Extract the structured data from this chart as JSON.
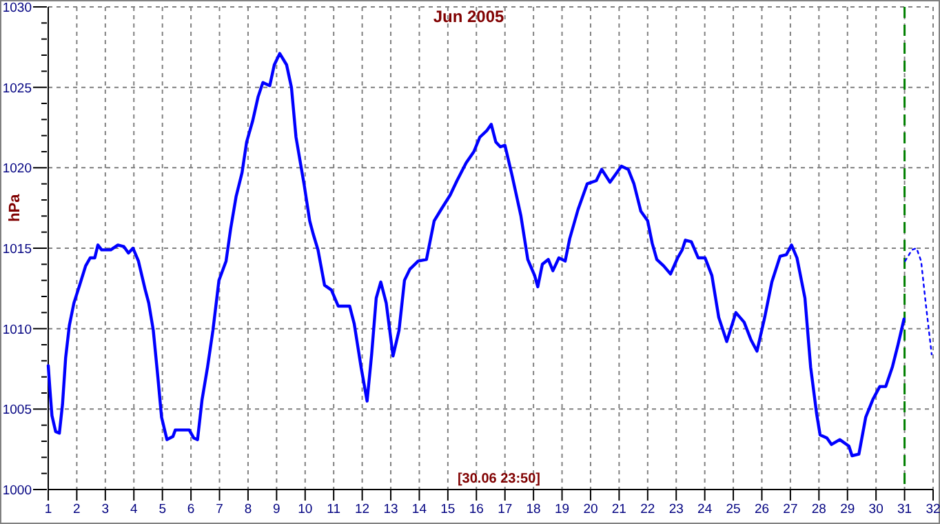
{
  "chart_data": {
    "type": "line",
    "title": "Jun 2005",
    "ylabel": "hPa",
    "annotations": [
      "[30.06 23:50]"
    ],
    "xlim": [
      1,
      32
    ],
    "ylim": [
      1000,
      1030
    ],
    "xticks": [
      1,
      2,
      3,
      4,
      5,
      6,
      7,
      8,
      9,
      10,
      11,
      12,
      13,
      14,
      15,
      16,
      17,
      18,
      19,
      20,
      21,
      22,
      23,
      24,
      25,
      26,
      27,
      28,
      29,
      30,
      31,
      32
    ],
    "yticks": [
      1000,
      {
        "value": 1001,
        "label": null
      },
      {
        "value": 1002,
        "label": null
      },
      {
        "value": 1003,
        "label": null
      },
      {
        "value": 1004,
        "label": null
      },
      1005,
      {
        "value": 1006,
        "label": null
      },
      {
        "value": 1007,
        "label": null
      },
      {
        "value": 1008,
        "label": null
      },
      {
        "value": 1009,
        "label": null
      },
      1010,
      {
        "value": 1011,
        "label": null
      },
      {
        "value": 1012,
        "label": null
      },
      {
        "value": 1013,
        "label": null
      },
      {
        "value": 1014,
        "label": null
      },
      1015,
      {
        "value": 1016,
        "label": null
      },
      {
        "value": 1017,
        "label": null
      },
      {
        "value": 1018,
        "label": null
      },
      {
        "value": 1019,
        "label": null
      },
      1020,
      {
        "value": 1021,
        "label": null
      },
      {
        "value": 1022,
        "label": null
      },
      {
        "value": 1023,
        "label": null
      },
      {
        "value": 1024,
        "label": null
      },
      1025,
      {
        "value": 1026,
        "label": null
      },
      {
        "value": 1027,
        "label": null
      },
      {
        "value": 1028,
        "label": null
      },
      {
        "value": 1029,
        "label": null
      },
      1030
    ],
    "grid": true,
    "marker": "none",
    "ref_lines": [
      {
        "axis": "x",
        "value": 31,
        "color": "#008000",
        "line_style": "dashed"
      }
    ],
    "series": [
      {
        "color": "#0000ff",
        "line_style": "solid",
        "x": [
          1.0,
          1.06,
          1.13,
          1.26,
          1.39,
          1.5,
          1.61,
          1.74,
          1.9,
          2.1,
          2.31,
          2.47,
          2.63,
          2.74,
          2.87,
          3.19,
          3.44,
          3.65,
          3.81,
          3.97,
          4.16,
          4.4,
          4.52,
          4.68,
          4.84,
          4.97,
          5.16,
          5.37,
          5.45,
          5.94,
          6.1,
          6.23,
          6.39,
          6.58,
          6.77,
          6.98,
          7.23,
          7.39,
          7.58,
          7.79,
          7.95,
          8.16,
          8.35,
          8.52,
          8.76,
          8.92,
          9.11,
          9.35,
          9.52,
          9.68,
          9.97,
          10.16,
          10.28,
          10.45,
          10.68,
          10.92,
          11.16,
          11.56,
          11.72,
          11.96,
          12.17,
          12.33,
          12.49,
          12.65,
          12.84,
          13.08,
          13.29,
          13.48,
          13.67,
          13.96,
          14.25,
          14.52,
          14.76,
          15.08,
          15.32,
          15.64,
          15.91,
          16.12,
          16.36,
          16.52,
          16.68,
          16.84,
          17.0,
          17.24,
          17.56,
          17.8,
          18.04,
          18.15,
          18.31,
          18.52,
          18.68,
          18.89,
          19.11,
          19.27,
          19.56,
          19.88,
          20.2,
          20.39,
          20.68,
          21.08,
          21.32,
          21.52,
          21.76,
          22.0,
          22.16,
          22.32,
          22.56,
          22.8,
          23.05,
          23.21,
          23.32,
          23.53,
          23.77,
          24.01,
          24.25,
          24.49,
          24.77,
          25.09,
          25.38,
          25.62,
          25.83,
          26.1,
          26.35,
          26.64,
          26.86,
          27.04,
          27.23,
          27.51,
          27.71,
          27.92,
          28.04,
          28.28,
          28.44,
          28.73,
          29.05,
          29.16,
          29.4,
          29.64,
          29.89,
          30.13,
          30.34,
          30.57,
          30.77,
          30.98
        ],
        "values": [
          1007.7,
          1006.2,
          1004.6,
          1003.6,
          1003.5,
          1005.3,
          1008.2,
          1010.2,
          1011.6,
          1012.7,
          1013.9,
          1014.4,
          1014.4,
          1015.2,
          1014.9,
          1014.9,
          1015.2,
          1015.1,
          1014.7,
          1015.0,
          1014.2,
          1012.4,
          1011.6,
          1009.9,
          1007.0,
          1004.5,
          1003.1,
          1003.3,
          1003.7,
          1003.7,
          1003.2,
          1003.1,
          1005.6,
          1007.6,
          1009.9,
          1013.0,
          1014.2,
          1016.2,
          1018.2,
          1019.7,
          1021.6,
          1022.9,
          1024.4,
          1025.3,
          1025.1,
          1026.4,
          1027.1,
          1026.4,
          1025.0,
          1021.9,
          1018.9,
          1016.7,
          1015.9,
          1014.9,
          1012.7,
          1012.4,
          1011.4,
          1011.4,
          1010.3,
          1007.6,
          1005.5,
          1008.4,
          1011.9,
          1012.9,
          1011.6,
          1008.3,
          1009.9,
          1013.0,
          1013.7,
          1014.2,
          1014.3,
          1016.7,
          1017.4,
          1018.3,
          1019.2,
          1020.3,
          1021.0,
          1021.9,
          1022.3,
          1022.7,
          1021.6,
          1021.3,
          1021.4,
          1019.6,
          1017.0,
          1014.3,
          1013.3,
          1012.6,
          1014.0,
          1014.3,
          1013.6,
          1014.4,
          1014.2,
          1015.6,
          1017.4,
          1019.0,
          1019.2,
          1019.9,
          1019.1,
          1020.1,
          1019.9,
          1019.0,
          1017.3,
          1016.7,
          1015.3,
          1014.3,
          1013.9,
          1013.4,
          1014.4,
          1014.9,
          1015.5,
          1015.4,
          1014.4,
          1014.4,
          1013.3,
          1010.7,
          1009.2,
          1011.0,
          1010.4,
          1009.3,
          1008.6,
          1010.7,
          1012.9,
          1014.5,
          1014.6,
          1015.2,
          1014.4,
          1011.9,
          1007.6,
          1004.7,
          1003.4,
          1003.2,
          1002.8,
          1003.1,
          1002.7,
          1002.1,
          1002.2,
          1004.5,
          1005.6,
          1006.4,
          1006.4,
          1007.6,
          1009.0,
          1010.6
        ]
      },
      {
        "color": "#0000ff",
        "line_style": "dotted",
        "x": [
          31.02,
          31.26,
          31.42,
          31.58,
          31.74,
          31.95
        ],
        "values": [
          1014.2,
          1014.9,
          1015.0,
          1014.2,
          1011.6,
          1008.4
        ]
      }
    ]
  }
}
